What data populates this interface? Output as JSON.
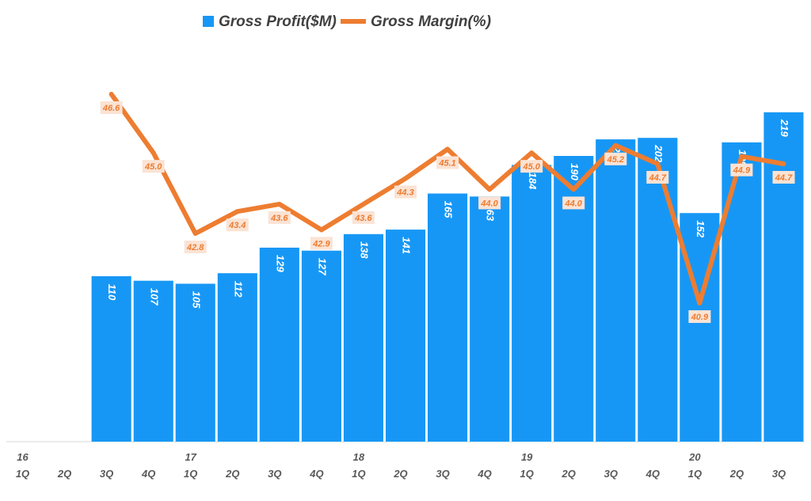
{
  "chart_data": {
    "type": "bar",
    "categories": [
      "1Q",
      "2Q",
      "3Q",
      "4Q",
      "1Q",
      "2Q",
      "3Q",
      "4Q",
      "1Q",
      "2Q",
      "3Q",
      "4Q",
      "1Q",
      "2Q",
      "3Q",
      "4Q",
      "1Q",
      "2Q",
      "3Q"
    ],
    "year_labels": [
      "16",
      "",
      "",
      "",
      "17",
      "",
      "",
      "",
      "18",
      "",
      "",
      "",
      "19",
      "",
      "",
      "",
      "20",
      "",
      ""
    ],
    "series": [
      {
        "name": "Gross Profit($M)",
        "type": "bar",
        "axis": "left",
        "color": "#1797f5",
        "values": [
          null,
          null,
          110,
          107,
          105,
          112,
          129,
          127,
          138,
          141,
          165,
          163,
          184,
          190,
          201,
          202,
          152,
          199,
          219
        ],
        "labels": [
          "",
          "",
          "110",
          "107",
          "105",
          "112",
          "129",
          "127",
          "138",
          "141",
          "165",
          "163",
          "184",
          "190",
          "201",
          "202",
          "152",
          "199",
          "219"
        ]
      },
      {
        "name": "Gross Margin(%)",
        "type": "line",
        "axis": "right",
        "color": "#ed7d31",
        "values": [
          null,
          null,
          46.6,
          45.0,
          42.8,
          43.4,
          43.6,
          42.9,
          43.6,
          44.3,
          45.1,
          44.0,
          45.0,
          44.0,
          45.2,
          44.7,
          40.9,
          44.9,
          44.7
        ],
        "labels": [
          "",
          "",
          "46.6",
          "45.0",
          "42.8",
          "43.4",
          "43.6",
          "42.9",
          "43.6",
          "44.3",
          "45.1",
          "44.0",
          "45.0",
          "44.0",
          "45.2",
          "44.7",
          "40.9",
          "44.9",
          "44.7"
        ]
      }
    ],
    "ylim_left": [
      0,
      240
    ],
    "ylim_right": [
      34.5,
      47.8
    ],
    "legend_position": "top-center",
    "grid": false,
    "colors": {
      "label_box_fill": "#fbe3d4",
      "label_text": "#ed7d31",
      "axis_line": "#d9d9d9"
    }
  }
}
